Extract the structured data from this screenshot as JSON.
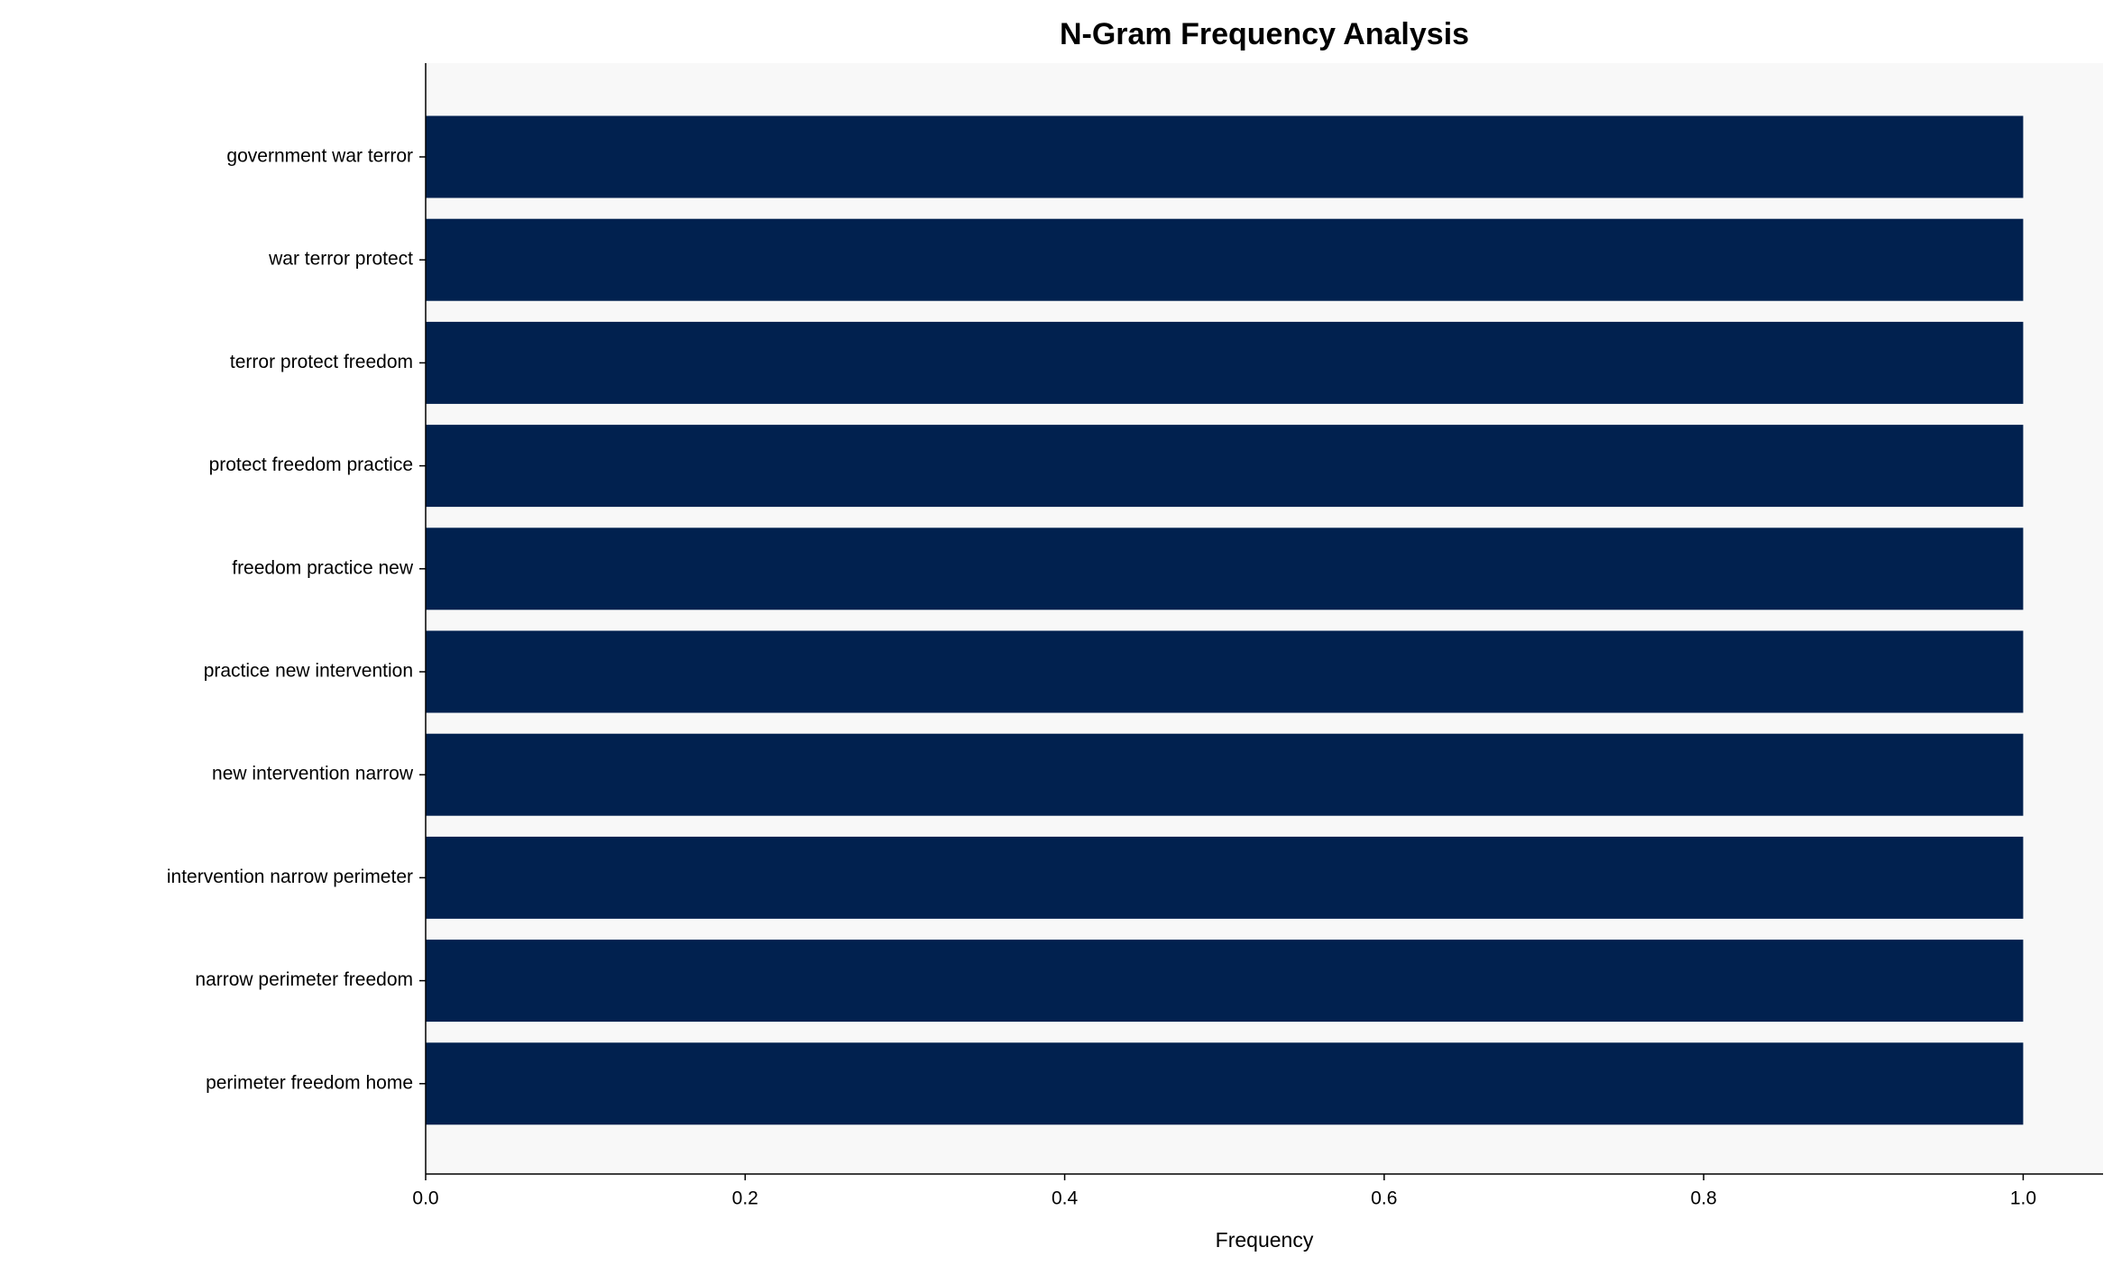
{
  "chart_data": {
    "type": "barh",
    "title": "N-Gram Frequency Analysis",
    "xlabel": "Frequency",
    "categories": [
      "government war terror",
      "war terror protect",
      "terror protect freedom",
      "protect freedom practice",
      "freedom practice new",
      "practice new intervention",
      "new intervention narrow",
      "intervention narrow perimeter",
      "narrow perimeter freedom",
      "perimeter freedom home"
    ],
    "values": [
      1,
      1,
      1,
      1,
      1,
      1,
      1,
      1,
      1,
      1
    ],
    "color": "#01214f",
    "xlim": [
      0,
      1.05
    ],
    "xticks": [
      {
        "value": 0,
        "label": "0.0"
      },
      0.2,
      0.4,
      0.6,
      0.8,
      {
        "value": 1,
        "label": "1.0"
      }
    ]
  }
}
